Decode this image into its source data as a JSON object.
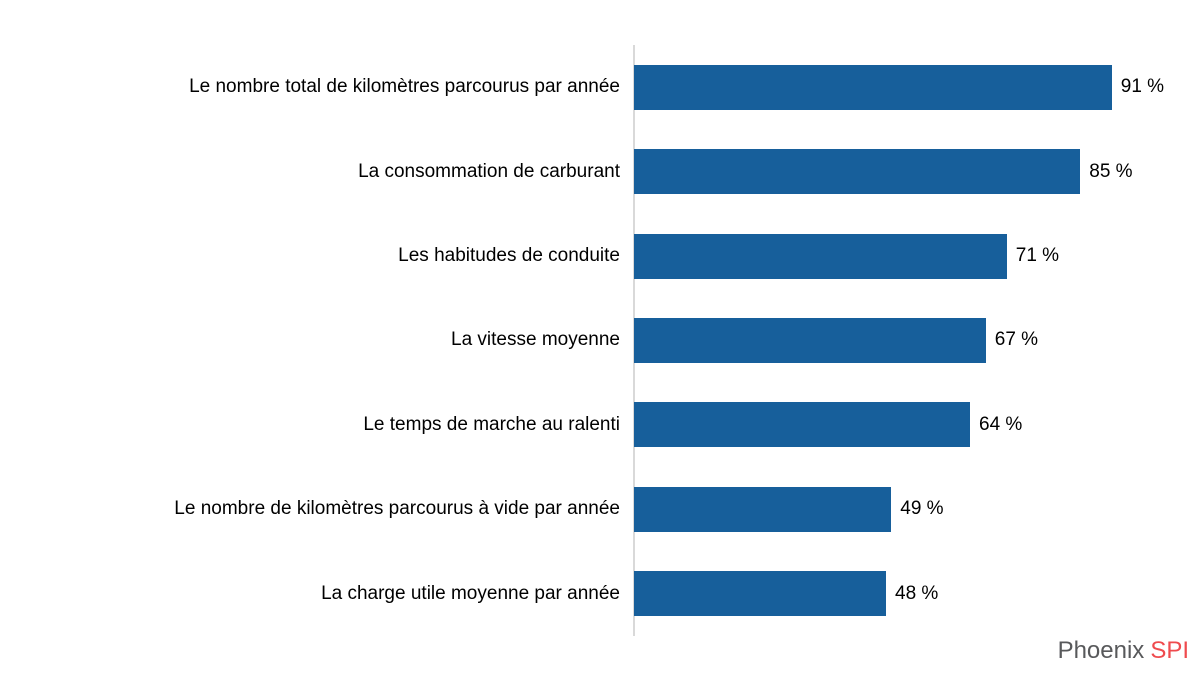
{
  "chart_data": {
    "type": "bar",
    "orientation": "horizontal",
    "title": "",
    "xlabel": "",
    "ylabel": "",
    "xlim": [
      0,
      100
    ],
    "grid": false,
    "legend": false,
    "categories": [
      "Le nombre total de kilomètres parcourus par année",
      "La consommation de carburant",
      "Les habitudes de conduite",
      "La vitesse moyenne",
      "Le temps de marche au ralenti",
      "Le nombre de kilomètres parcourus à vide par année",
      "La charge utile moyenne par année"
    ],
    "values": [
      91,
      85,
      71,
      67,
      64,
      49,
      48
    ],
    "value_labels": [
      "91 %",
      "85 %",
      "71 %",
      "67 %",
      "64 %",
      "49 %",
      "48 %"
    ],
    "bar_color": "#175F9B",
    "axis_line_color": "#D9D9D9",
    "label_color": "#000000"
  },
  "footer": {
    "brand_name": "Phoenix",
    "brand_suffix": "SPI",
    "brand_name_color": "#58595B",
    "brand_suffix_color": "#EF4B4E"
  }
}
